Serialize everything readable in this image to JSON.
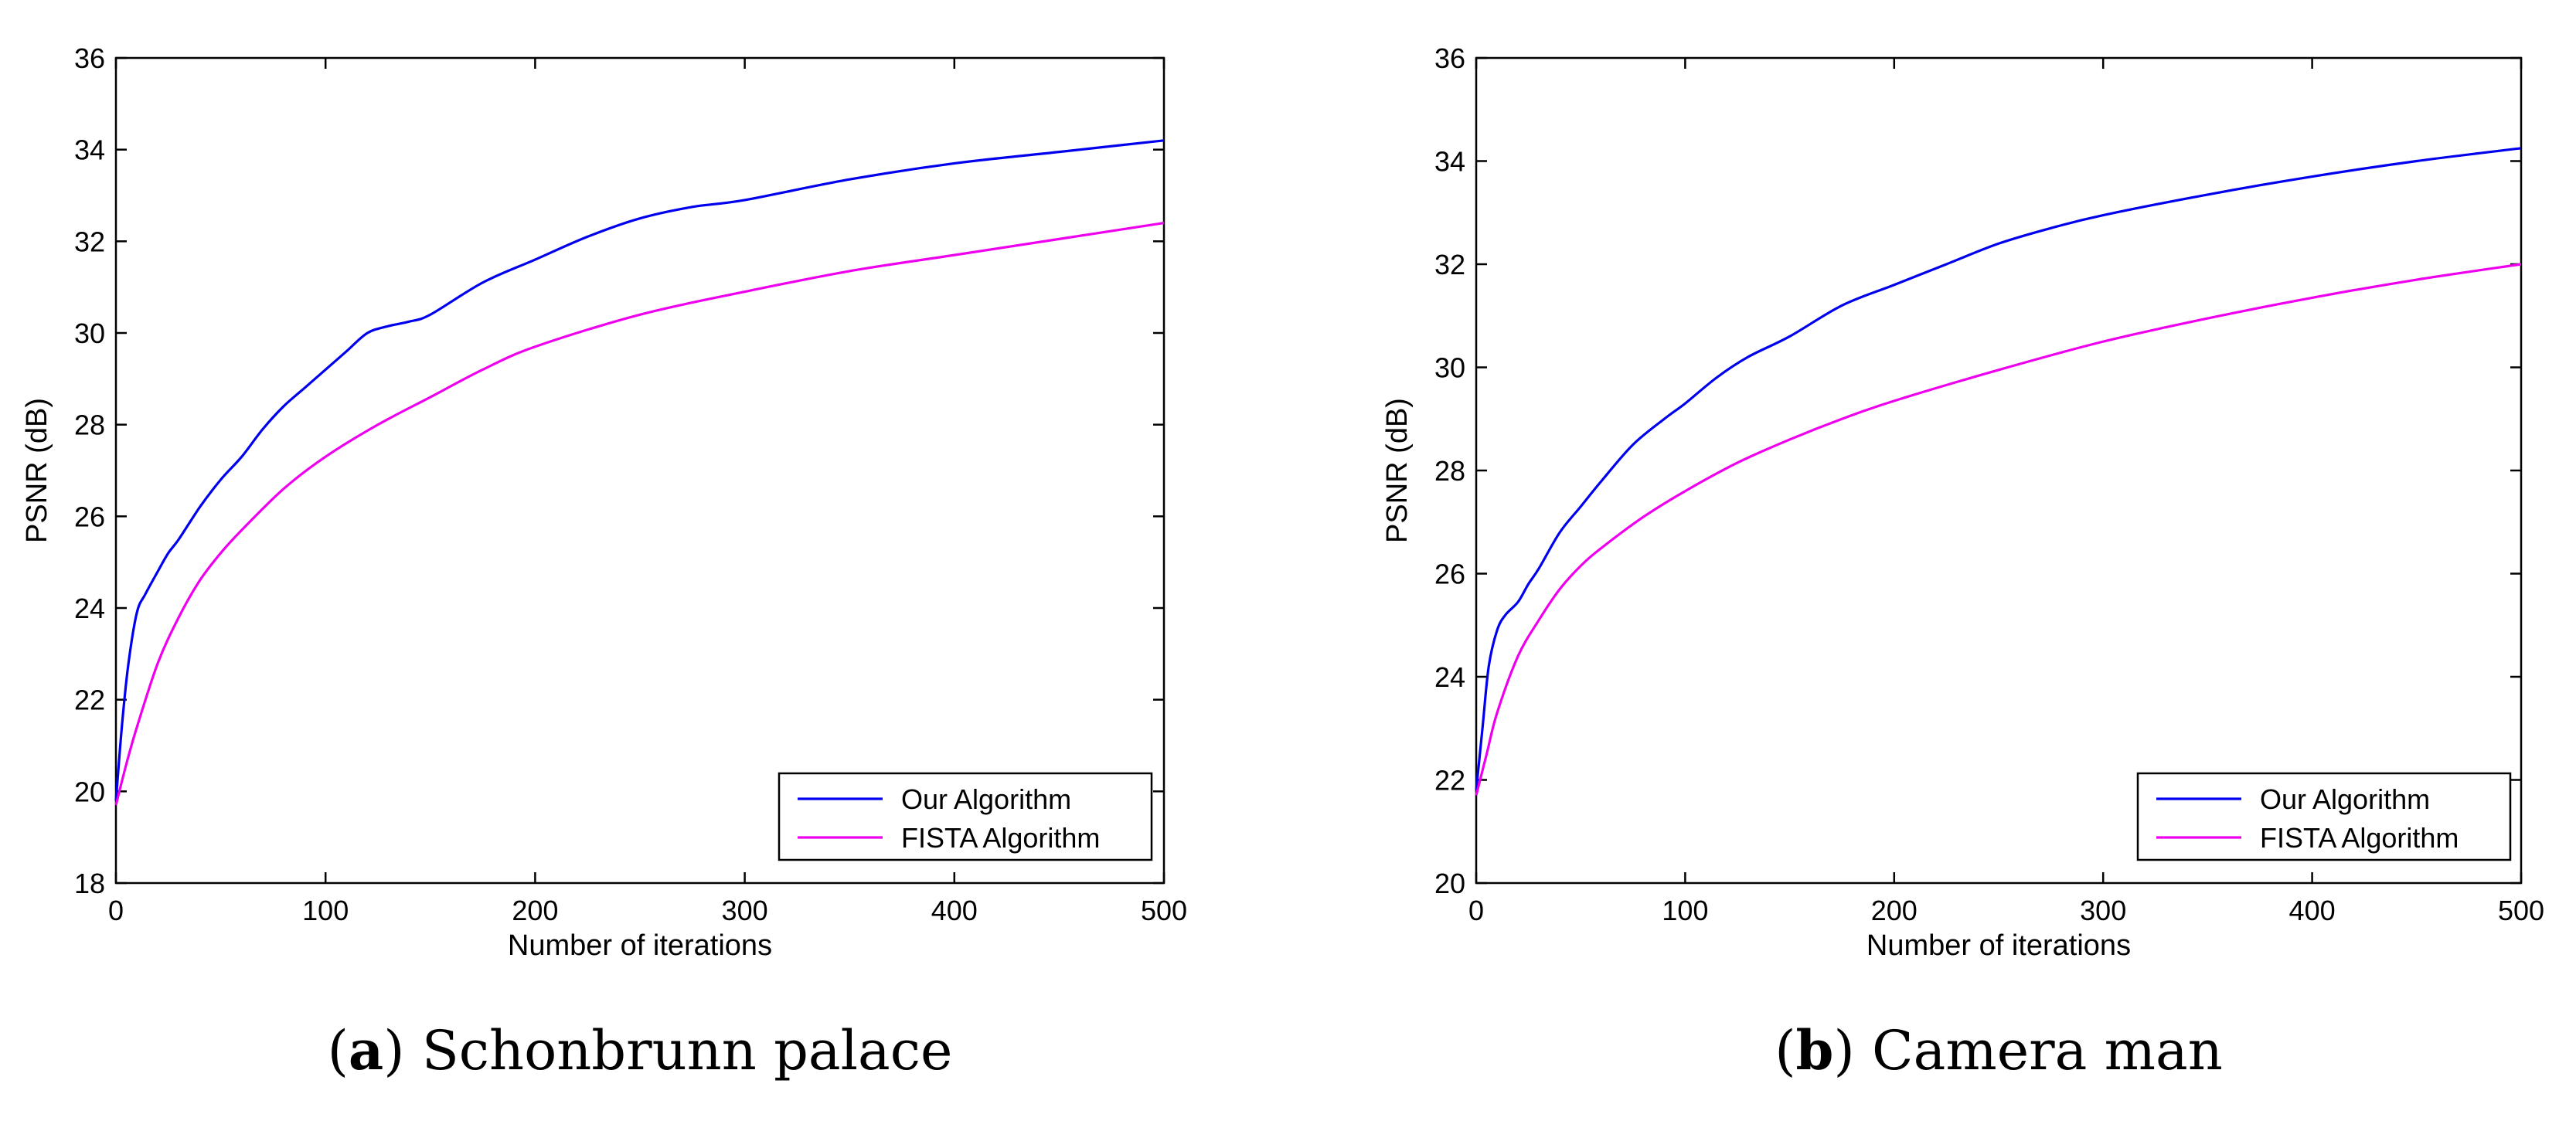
{
  "colors": {
    "series_blue": "#0000ee",
    "series_magenta": "#ee00ee",
    "axis": "#000000"
  },
  "chart_data": [
    {
      "type": "line",
      "caption_letter": "a",
      "caption_text": ") Schonbrunn palace",
      "caption_open": "(",
      "xlabel": "Number of iterations",
      "ylabel": "PSNR (dB)",
      "xlim": [
        0,
        500
      ],
      "ylim": [
        18,
        36
      ],
      "xticks": [
        0,
        100,
        200,
        300,
        400,
        500
      ],
      "yticks": [
        18,
        20,
        22,
        24,
        26,
        28,
        30,
        32,
        34,
        36
      ],
      "legend_position": "bottom-right",
      "series": [
        {
          "name": "Our Algorithm",
          "color": "#0000ee",
          "x": [
            0,
            3,
            6,
            10,
            14,
            20,
            25,
            30,
            40,
            50,
            60,
            70,
            80,
            90,
            100,
            110,
            120,
            130,
            140,
            150,
            175,
            200,
            225,
            250,
            275,
            300,
            350,
            400,
            450,
            500
          ],
          "y": [
            19.8,
            21.5,
            22.8,
            23.9,
            24.3,
            24.8,
            25.2,
            25.5,
            26.2,
            26.8,
            27.3,
            27.9,
            28.4,
            28.8,
            29.2,
            29.6,
            30.0,
            30.15,
            30.25,
            30.4,
            31.1,
            31.6,
            32.1,
            32.5,
            32.75,
            32.9,
            33.35,
            33.7,
            33.95,
            34.2
          ]
        },
        {
          "name": "FISTA Algorithm",
          "color": "#ee00ee",
          "x": [
            0,
            5,
            10,
            20,
            30,
            40,
            50,
            60,
            80,
            100,
            125,
            150,
            175,
            200,
            250,
            300,
            350,
            400,
            450,
            500
          ],
          "y": [
            19.7,
            20.6,
            21.4,
            22.8,
            23.8,
            24.6,
            25.2,
            25.7,
            26.6,
            27.3,
            28.0,
            28.6,
            29.2,
            29.7,
            30.4,
            30.9,
            31.35,
            31.7,
            32.05,
            32.4
          ]
        }
      ]
    },
    {
      "type": "line",
      "caption_letter": "b",
      "caption_text": ") Camera man",
      "caption_open": "(",
      "xlabel": "Number of iterations",
      "ylabel": "PSNR (dB)",
      "xlim": [
        0,
        500
      ],
      "ylim": [
        20,
        36
      ],
      "xticks": [
        0,
        100,
        200,
        300,
        400,
        500
      ],
      "yticks": [
        20,
        22,
        24,
        26,
        28,
        30,
        32,
        34,
        36
      ],
      "legend_position": "bottom-right",
      "series": [
        {
          "name": "Our Algorithm",
          "color": "#0000ee",
          "x": [
            0,
            3,
            6,
            10,
            14,
            20,
            25,
            30,
            40,
            50,
            60,
            75,
            90,
            100,
            115,
            130,
            150,
            175,
            200,
            225,
            250,
            275,
            300,
            350,
            400,
            450,
            500
          ],
          "y": [
            21.8,
            23.0,
            24.2,
            24.9,
            25.2,
            25.45,
            25.8,
            26.1,
            26.8,
            27.3,
            27.8,
            28.5,
            29.0,
            29.3,
            29.8,
            30.2,
            30.6,
            31.2,
            31.6,
            32.0,
            32.4,
            32.7,
            32.95,
            33.35,
            33.7,
            34.0,
            34.25
          ]
        },
        {
          "name": "FISTA Algorithm",
          "color": "#ee00ee",
          "x": [
            0,
            5,
            10,
            20,
            30,
            40,
            50,
            60,
            80,
            100,
            125,
            150,
            175,
            200,
            250,
            300,
            350,
            400,
            450,
            500
          ],
          "y": [
            21.7,
            22.5,
            23.3,
            24.4,
            25.1,
            25.7,
            26.15,
            26.5,
            27.1,
            27.6,
            28.15,
            28.6,
            29.0,
            29.35,
            29.95,
            30.5,
            30.95,
            31.35,
            31.7,
            32.0
          ]
        }
      ]
    }
  ]
}
